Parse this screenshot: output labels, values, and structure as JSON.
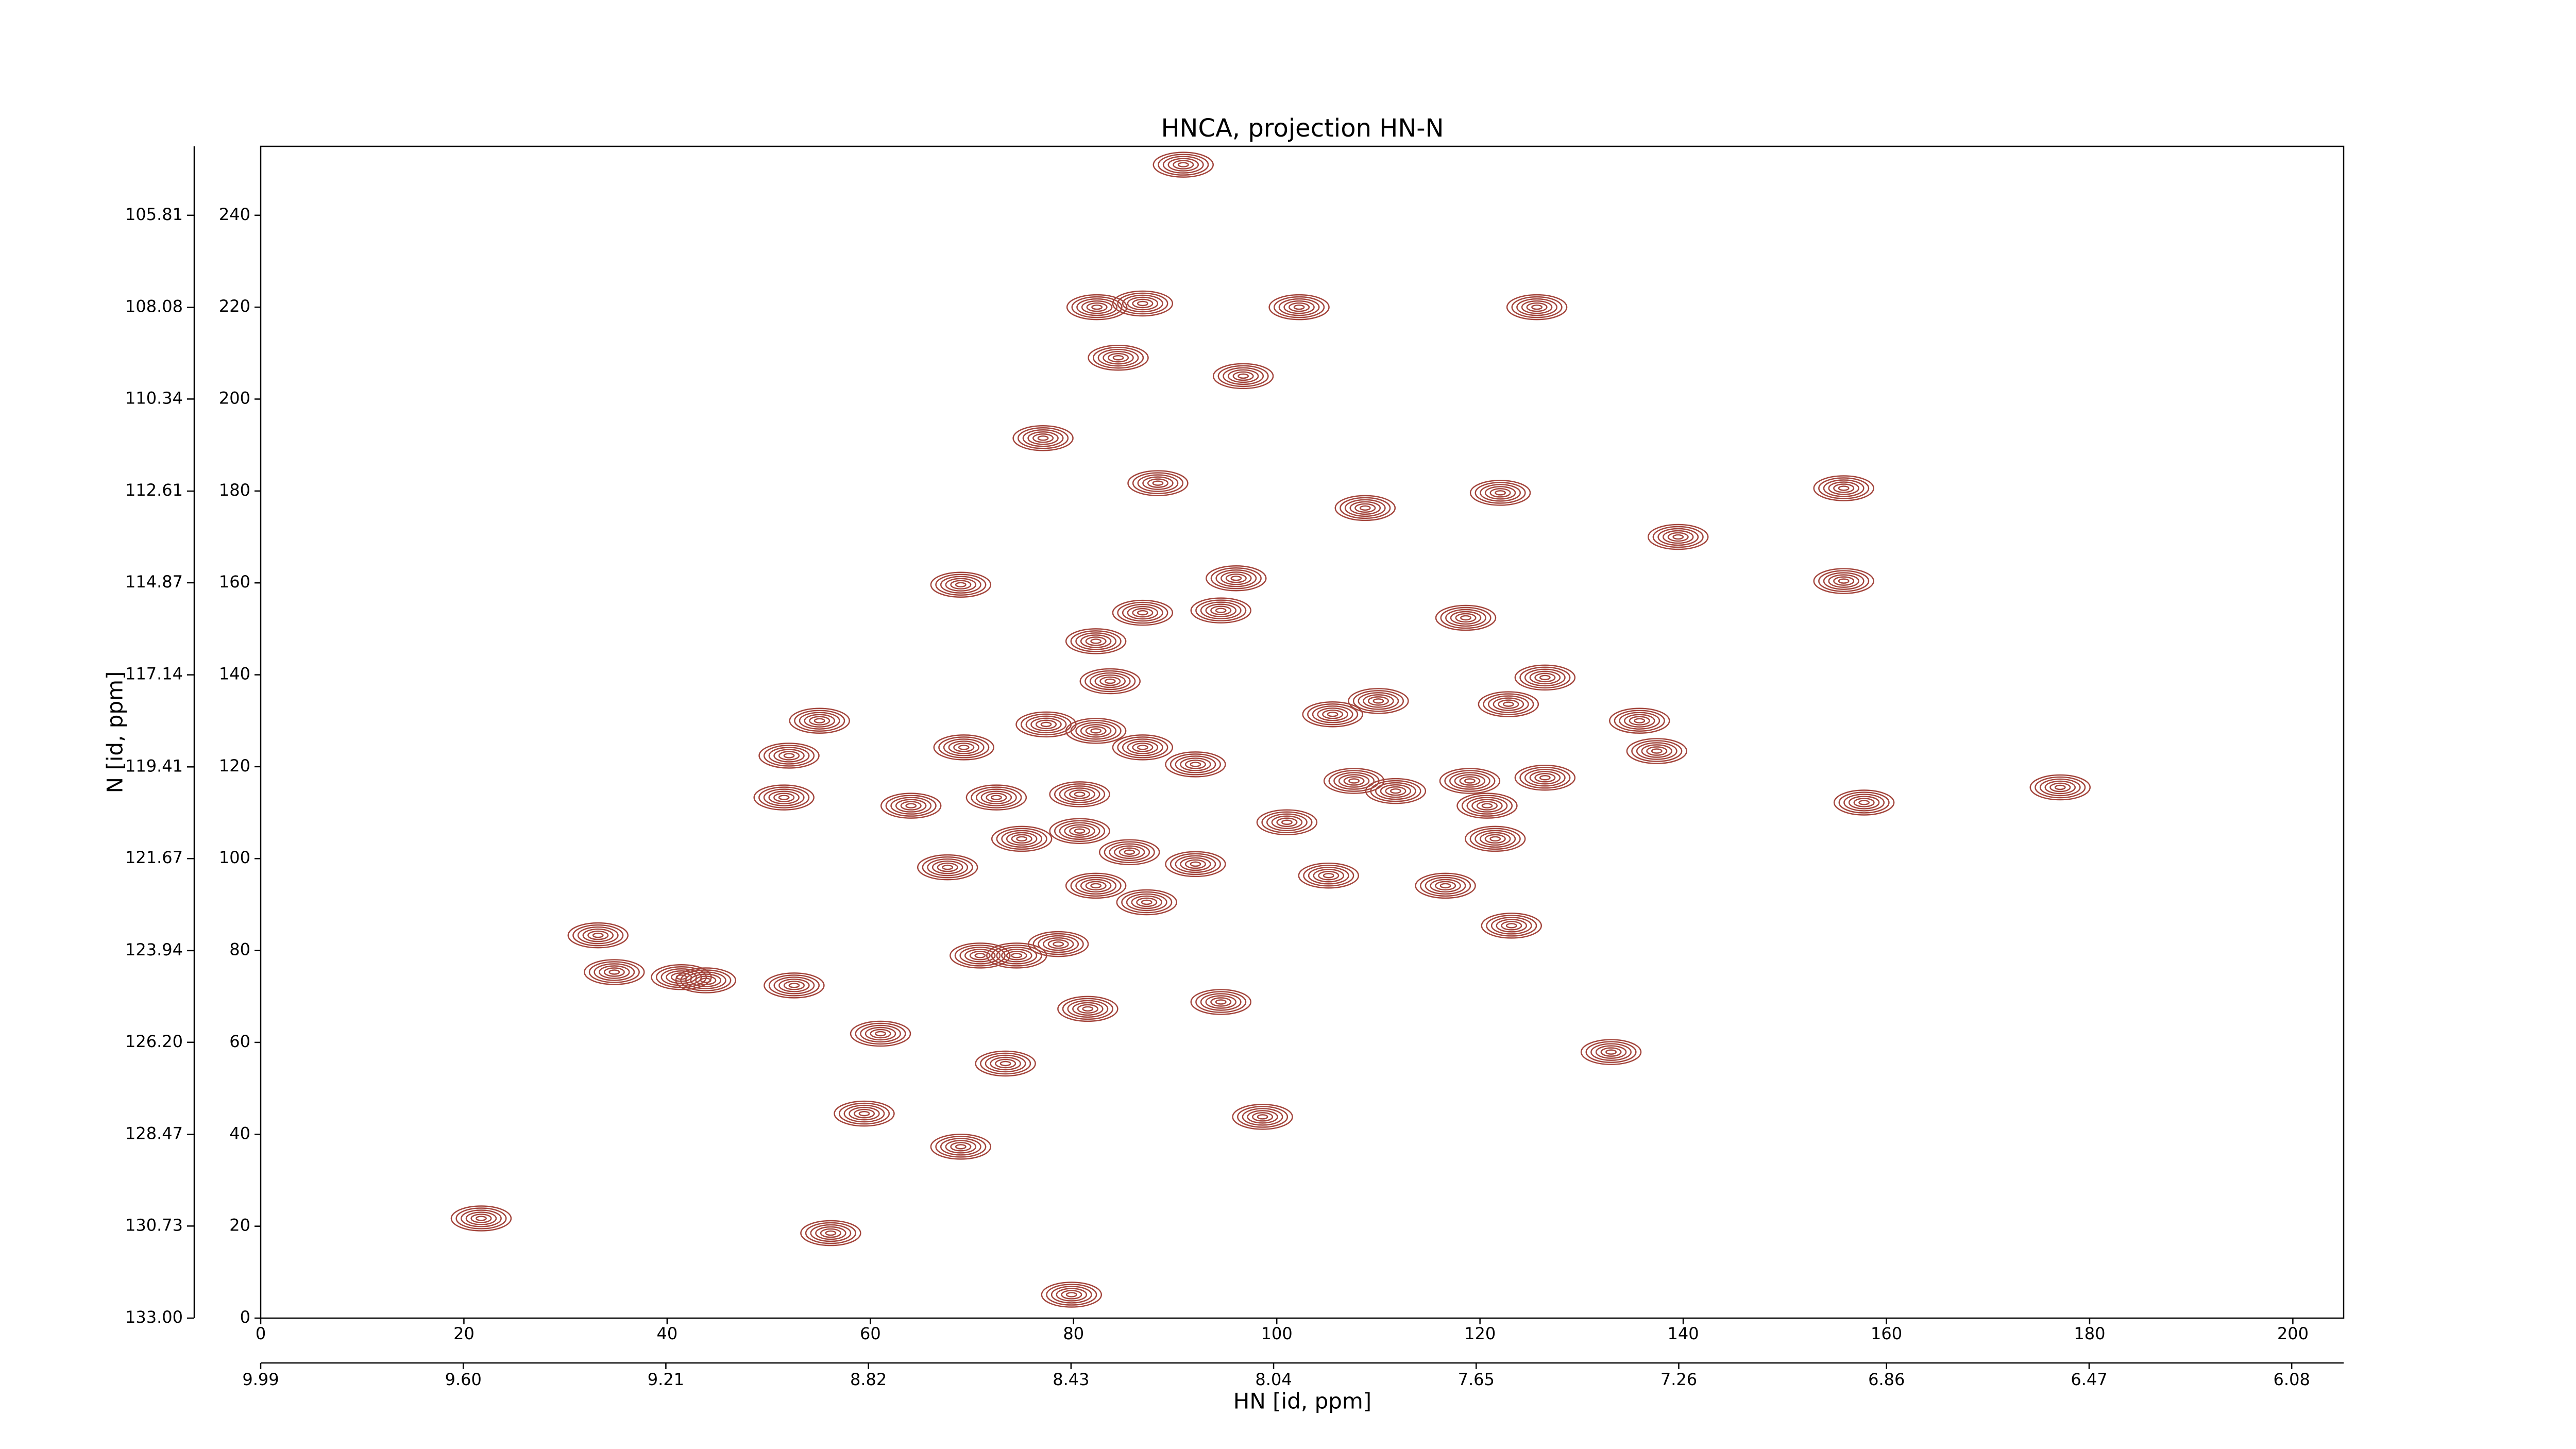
{
  "chart_data": {
    "type": "contour",
    "title": "HNCA, projection HN-N",
    "xlabel": "HN [id, ppm]",
    "ylabel": "N [id, ppm]",
    "color": "#a3453c",
    "xlim": [
      0,
      205
    ],
    "xticks": [
      0,
      20,
      40,
      60,
      80,
      100,
      120,
      140,
      160,
      180,
      200
    ],
    "ylim": [
      0,
      255
    ],
    "yticks": [
      0,
      20,
      40,
      60,
      80,
      100,
      120,
      140,
      160,
      180,
      200,
      220,
      240
    ],
    "x2lim": [
      9.99,
      5.98
    ],
    "x2ticks": [
      9.99,
      {
        "value": 9.6,
        "label": "9.60"
      },
      9.21,
      8.82,
      8.43,
      8.04,
      7.65,
      7.26,
      6.86,
      6.47,
      6.08
    ],
    "y2lim": [
      133.0,
      104.11
    ],
    "y2ticks": [
      {
        "value": 133.0,
        "label": "133.00"
      },
      130.73,
      128.47,
      {
        "value": 126.2,
        "label": "126.20"
      },
      123.94,
      121.67,
      119.41,
      117.14,
      114.87,
      112.61,
      110.34,
      108.08,
      105.81
    ],
    "x": [
      90.8,
      82.3,
      86.8,
      84.4,
      96.7,
      102.2,
      125.6,
      77.0,
      88.3,
      108.7,
      122.0,
      139.5,
      155.8,
      68.9,
      96.0,
      86.8,
      94.5,
      82.2,
      118.6,
      126.4,
      122.8,
      155.8,
      55.0,
      52.0,
      51.5,
      69.2,
      77.3,
      82.2,
      86.8,
      92.0,
      110.0,
      105.5,
      64.0,
      72.4,
      80.6,
      80.6,
      67.6,
      74.9,
      85.5,
      82.2,
      87.2,
      92.0,
      105.1,
      101.0,
      107.6,
      111.7,
      119.0,
      126.4,
      120.7,
      121.5,
      116.6,
      135.7,
      137.4,
      157.8,
      177.1,
      33.2,
      34.8,
      43.8,
      52.5,
      41.4,
      70.8,
      74.4,
      78.5,
      81.4,
      94.5,
      61.0,
      73.3,
      132.9,
      59.4,
      68.9,
      98.6,
      21.7,
      56.1,
      79.8,
      123.1,
      83.6
    ],
    "values": [
      251.0,
      220.0,
      220.8,
      209.0,
      205.0,
      220.0,
      220.0,
      191.5,
      181.7,
      176.3,
      179.6,
      170.0,
      180.6,
      159.6,
      161.0,
      153.5,
      154.0,
      147.3,
      152.4,
      139.4,
      133.6,
      160.4,
      130.0,
      122.4,
      113.3,
      124.2,
      129.2,
      127.8,
      124.2,
      120.5,
      134.3,
      131.4,
      111.5,
      113.3,
      114.0,
      106.0,
      98.1,
      104.3,
      101.4,
      94.1,
      90.5,
      98.8,
      96.3,
      107.9,
      116.9,
      114.7,
      116.9,
      117.6,
      111.5,
      104.3,
      94.1,
      130.0,
      123.4,
      112.2,
      115.5,
      83.3,
      75.3,
      73.5,
      72.4,
      74.2,
      78.9,
      78.9,
      81.4,
      67.3,
      68.8,
      61.9,
      55.4,
      57.9,
      44.5,
      37.3,
      43.8,
      21.7,
      18.5,
      5.1,
      85.4,
      138.6
    ]
  }
}
